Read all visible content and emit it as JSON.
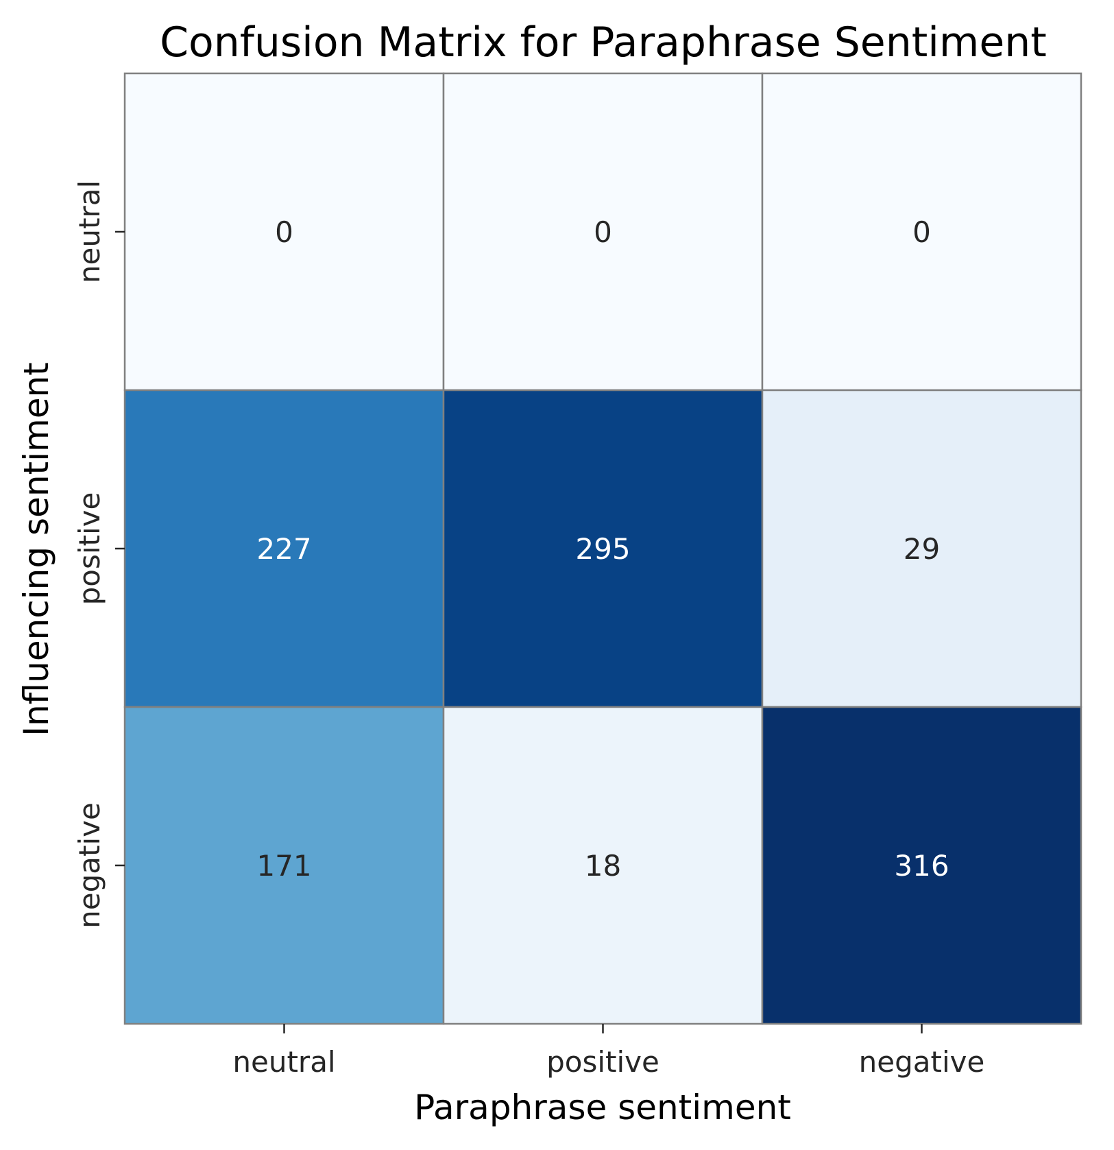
{
  "chart_data": {
    "type": "heatmap",
    "title": "Confusion Matrix for Paraphrase Sentiment",
    "xlabel": "Paraphrase sentiment",
    "ylabel": "Influencing sentiment",
    "x_categories": [
      "neutral",
      "positive",
      "negative"
    ],
    "y_categories": [
      "neutral",
      "positive",
      "negative"
    ],
    "values": [
      [
        0,
        0,
        0
      ],
      [
        227,
        295,
        29
      ],
      [
        171,
        18,
        316
      ]
    ],
    "colormap": "Blues",
    "value_range": [
      0,
      316
    ],
    "colorbar": false,
    "grid": false,
    "annotated": true
  },
  "colors": {
    "colormap_stops": [
      "#f7fbff",
      "#deebf7",
      "#c6dbef",
      "#9ecae1",
      "#6baed6",
      "#4292c6",
      "#2171b5",
      "#08519c",
      "#08306b"
    ],
    "cell_border": "#808080",
    "annotation_dark": "#262626",
    "annotation_light": "#ffffff",
    "text": "#000000"
  }
}
